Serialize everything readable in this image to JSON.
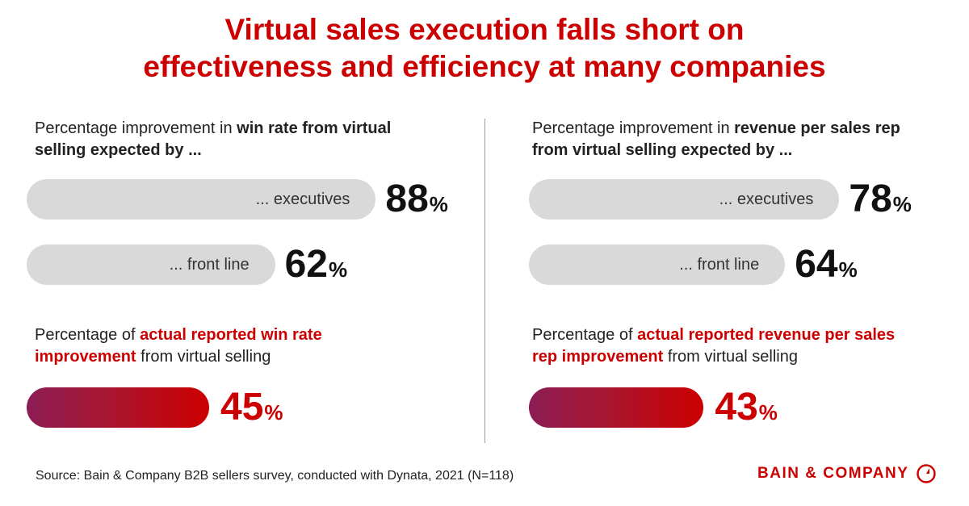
{
  "title_lines": [
    "Virtual sales execution falls short on",
    "effectiveness and efficiency at many companies"
  ],
  "colors": {
    "accent": "#cc0000",
    "bar_gray": "#d9d9d9",
    "gradient_start": "#8c1d55",
    "gradient_end": "#cc0000"
  },
  "chart_data": [
    {
      "type": "bar",
      "orientation": "horizontal",
      "label_prefix": "Percentage improvement in ",
      "label_bold": "win rate from virtual selling expected by ...",
      "categories": [
        "... executives",
        "... front line"
      ],
      "values": [
        88,
        62
      ],
      "unit": "%",
      "actual_label_prefix": "Percentage of ",
      "actual_label_red": "actual reported win rate improvement",
      "actual_label_suffix": " from virtual selling",
      "actual_value": 45
    },
    {
      "type": "bar",
      "orientation": "horizontal",
      "label_prefix": "Percentage improvement in ",
      "label_bold": "revenue per sales rep from virtual selling expected by ...",
      "categories": [
        "... executives",
        "... front line"
      ],
      "values": [
        78,
        64
      ],
      "unit": "%",
      "actual_label_prefix": "Percentage of ",
      "actual_label_red": "actual reported revenue per sales rep improvement",
      "actual_label_suffix": " from virtual selling",
      "actual_value": 43
    }
  ],
  "source": "Source: Bain & Company B2B sellers survey, conducted with Dynata, 2021 (N=118)",
  "logo": {
    "text": "BAIN & COMPANY",
    "icon": "bain-logo-icon"
  }
}
